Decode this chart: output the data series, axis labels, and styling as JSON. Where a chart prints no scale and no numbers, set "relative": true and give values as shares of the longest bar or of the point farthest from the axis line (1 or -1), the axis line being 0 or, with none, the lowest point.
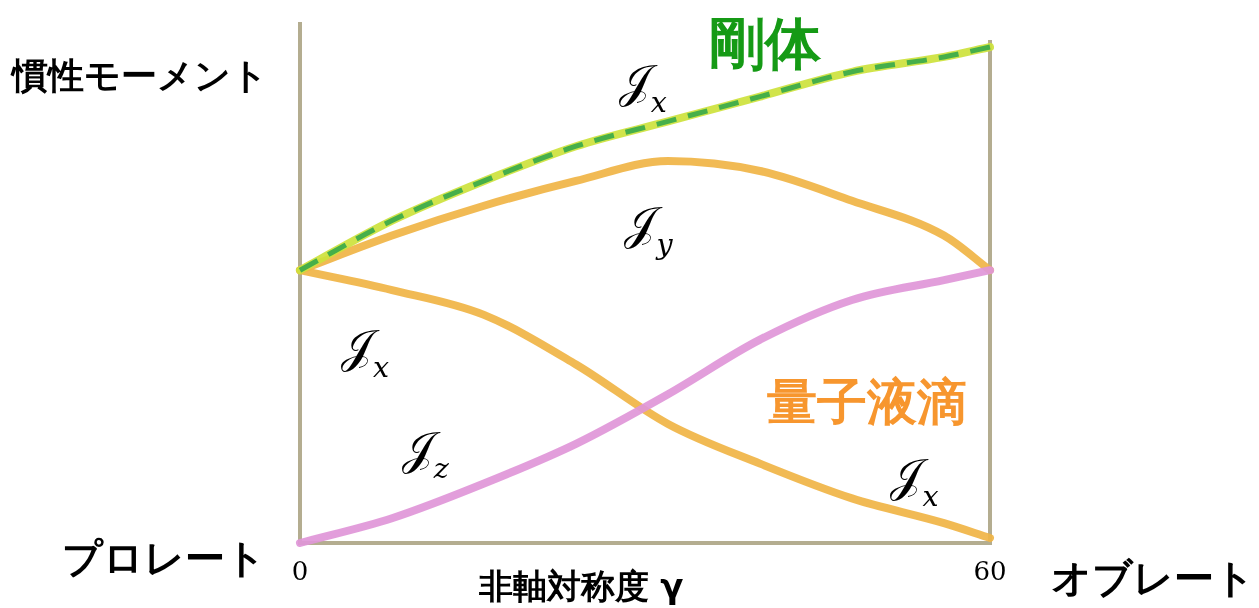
{
  "chart_data": {
    "type": "line",
    "xlabel": "非軸対称度 γ",
    "ylabel": "慣性モーメント",
    "relative": true,
    "xlim": [
      0,
      60
    ],
    "xticks": [
      0,
      60
    ],
    "tick_labels": "x",
    "x": [
      0,
      8,
      16,
      24,
      32,
      40,
      48,
      56,
      60
    ],
    "series": [
      {
        "name": "𝒥$_{y}$",
        "color": "#f0b445",
        "values": [
          0.55,
          0.62,
          0.68,
          0.73,
          0.77,
          0.75,
          0.69,
          0.62,
          0.55
        ]
      },
      {
        "name": "𝒥$_{x}$",
        "color": "#f0b445",
        "values": [
          0.55,
          0.51,
          0.46,
          0.36,
          0.24,
          0.16,
          0.09,
          0.04,
          0.01
        ]
      },
      {
        "name": "𝒥$_{z}$",
        "color": "#e096d8",
        "values": [
          0,
          0.05,
          0.12,
          0.2,
          0.3,
          0.41,
          0.49,
          0.53,
          0.55
        ]
      },
      {
        "color": "#cde23c",
        "values": [
          0.55,
          0.65,
          0.73,
          0.8,
          0.85,
          0.9,
          0.95,
          0.98,
          1
        ]
      },
      {
        "name": "𝒥$_{x}$",
        "color": "#3aaa4a",
        "line_style": "dashed",
        "values": [
          0.55,
          0.65,
          0.73,
          0.8,
          0.85,
          0.9,
          0.95,
          0.98,
          1
        ]
      }
    ],
    "annotations": [
      "剛体",
      "量子液滴",
      {
        "text": "𝒥$_{x}$",
        "x": 53,
        "y": 0.05
      },
      "プロレート",
      "オブレート"
    ]
  }
}
